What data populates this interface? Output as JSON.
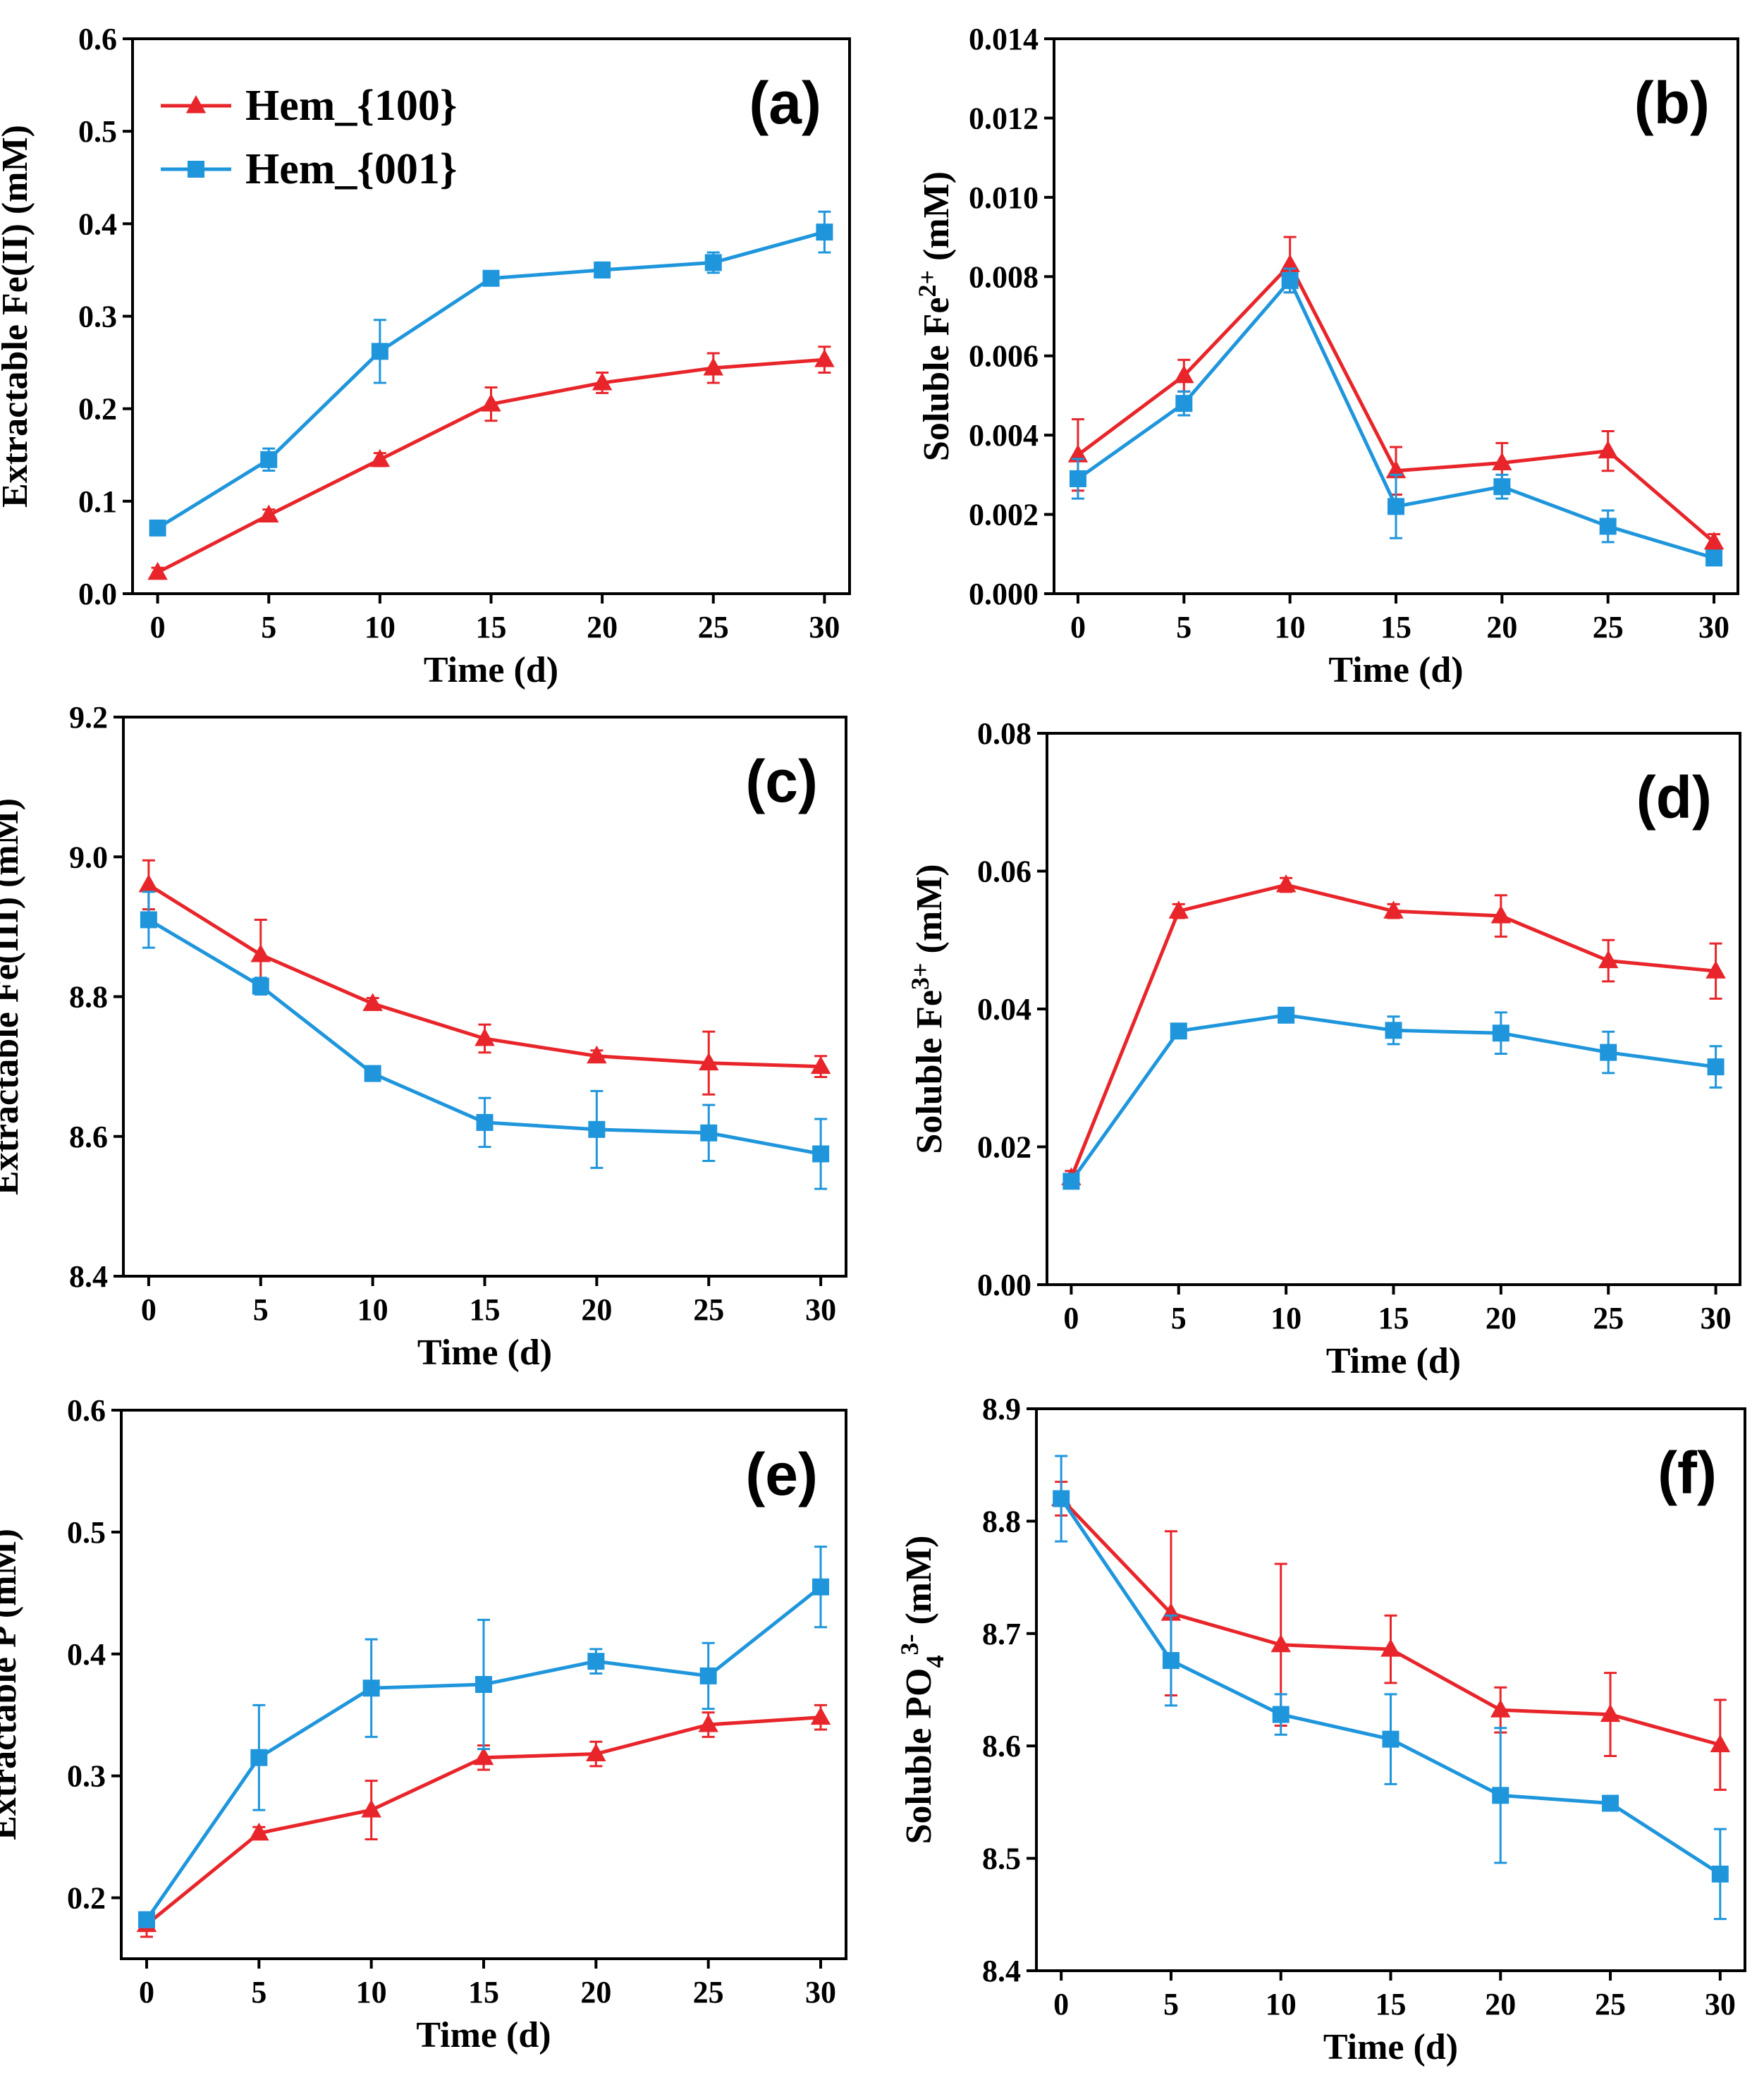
{
  "legend": {
    "series_names": [
      "Hem_{100}",
      "Hem_{001}"
    ]
  },
  "colors": {
    "red": "#e8252a",
    "blue": "#1f96dc"
  },
  "chart_data": [
    {
      "id": "a",
      "panel_label": "(a)",
      "type": "line",
      "xlabel": "Time (d)",
      "ylabel": "Extractable Fe(II) (mM)",
      "ylabel_parts": [
        {
          "t": "Extractable Fe(II) (mM)"
        }
      ],
      "x": [
        0,
        5,
        10,
        15,
        20,
        25,
        30
      ],
      "xticks": [
        "0",
        "5",
        "10",
        "15",
        "20",
        "25",
        "30"
      ],
      "ylim": [
        0,
        0.6
      ],
      "yticks": [
        "0.0",
        "0.1",
        "0.2",
        "0.3",
        "0.4",
        "0.5",
        "0.6"
      ],
      "legend": true,
      "series": [
        {
          "name": "Hem_{100}",
          "marker": "triangle",
          "color": "#e8252a",
          "values": [
            0.023,
            0.085,
            0.145,
            0.205,
            0.228,
            0.244,
            0.253
          ],
          "errors": [
            0.005,
            0.006,
            0.007,
            0.018,
            0.011,
            0.016,
            0.014
          ]
        },
        {
          "name": "Hem_{001}",
          "marker": "square",
          "color": "#1f96dc",
          "values": [
            0.071,
            0.145,
            0.262,
            0.341,
            0.35,
            0.358,
            0.391
          ],
          "errors": [
            0.005,
            0.012,
            0.034,
            0.005,
            0.008,
            0.011,
            0.022
          ]
        }
      ]
    },
    {
      "id": "b",
      "panel_label": "(b)",
      "type": "line",
      "xlabel": "Time (d)",
      "ylabel": "Soluble Fe2+ (mM)",
      "ylabel_parts": [
        {
          "t": "Soluble Fe"
        },
        {
          "t": "2+",
          "sup": true
        },
        {
          "t": " (mM)"
        }
      ],
      "x": [
        0,
        5,
        10,
        15,
        20,
        25,
        30
      ],
      "xticks": [
        "0",
        "5",
        "10",
        "15",
        "20",
        "25",
        "30"
      ],
      "ylim": [
        0,
        0.014
      ],
      "yticks": [
        "0.000",
        "0.002",
        "0.004",
        "0.006",
        "0.008",
        "0.010",
        "0.012",
        "0.014"
      ],
      "legend": false,
      "series": [
        {
          "name": "Hem_{100}",
          "marker": "triangle",
          "color": "#e8252a",
          "values": [
            0.0035,
            0.0055,
            0.0083,
            0.0031,
            0.0033,
            0.0036,
            0.0013
          ],
          "errors": [
            0.0009,
            0.0004,
            0.0007,
            0.0006,
            0.0005,
            0.0005,
            0.0002
          ]
        },
        {
          "name": "Hem_{001}",
          "marker": "square",
          "color": "#1f96dc",
          "values": [
            0.0029,
            0.0048,
            0.0079,
            0.0022,
            0.0027,
            0.0017,
            0.0009
          ],
          "errors": [
            0.0005,
            0.0003,
            0.0003,
            0.0008,
            0.0003,
            0.0004,
            0.0001
          ]
        }
      ]
    },
    {
      "id": "c",
      "panel_label": "(c)",
      "type": "line",
      "xlabel": "Time (d)",
      "ylabel": "Extractable Fe(III) (mM)",
      "ylabel_parts": [
        {
          "t": "Extractable Fe(III) (mM)"
        }
      ],
      "x": [
        0,
        5,
        10,
        15,
        20,
        25,
        30
      ],
      "xticks": [
        "0",
        "5",
        "10",
        "15",
        "20",
        "25",
        "30"
      ],
      "ylim": [
        8.4,
        9.2
      ],
      "yticks": [
        "8.4",
        "8.6",
        "8.8",
        "9.0",
        "9.2"
      ],
      "legend": false,
      "series": [
        {
          "name": "Hem_{100}",
          "marker": "triangle",
          "color": "#e8252a",
          "values": [
            8.96,
            8.86,
            8.79,
            8.74,
            8.715,
            8.705,
            8.7
          ],
          "errors": [
            0.035,
            0.05,
            0.008,
            0.02,
            0.008,
            0.045,
            0.015
          ]
        },
        {
          "name": "Hem_{001}",
          "marker": "square",
          "color": "#1f96dc",
          "values": [
            8.91,
            8.815,
            8.69,
            8.62,
            8.61,
            8.605,
            8.575
          ],
          "errors": [
            0.04,
            0.012,
            0.01,
            0.035,
            0.055,
            0.04,
            0.05
          ]
        }
      ]
    },
    {
      "id": "d",
      "panel_label": "(d)",
      "type": "line",
      "xlabel": "Time (d)",
      "ylabel": "Soluble Fe3+ (mM)",
      "ylabel_parts": [
        {
          "t": "Soluble Fe"
        },
        {
          "t": "3+",
          "sup": true
        },
        {
          "t": " (mM)"
        }
      ],
      "x": [
        0,
        5,
        10,
        15,
        20,
        25,
        30
      ],
      "xticks": [
        "0",
        "5",
        "10",
        "15",
        "20",
        "25",
        "30"
      ],
      "ylim": [
        0,
        0.08
      ],
      "yticks": [
        "0.00",
        "0.02",
        "0.04",
        "0.06",
        "0.08"
      ],
      "legend": false,
      "series": [
        {
          "name": "Hem_{100}",
          "marker": "triangle",
          "color": "#e8252a",
          "values": [
            0.0155,
            0.0542,
            0.058,
            0.0542,
            0.0535,
            0.047,
            0.0455
          ],
          "errors": [
            0.001,
            0.001,
            0.001,
            0.001,
            0.003,
            0.003,
            0.004
          ]
        },
        {
          "name": "Hem_{001}",
          "marker": "square",
          "color": "#1f96dc",
          "values": [
            0.015,
            0.0368,
            0.0391,
            0.0369,
            0.0365,
            0.0337,
            0.0316
          ],
          "errors": [
            0.001,
            0.001,
            0.001,
            0.002,
            0.003,
            0.003,
            0.003
          ]
        }
      ]
    },
    {
      "id": "e",
      "panel_label": "(e)",
      "type": "line",
      "xlabel": "Time (d)",
      "ylabel": "Extractable P (mM)",
      "ylabel_parts": [
        {
          "t": "Extractable P (mM)"
        }
      ],
      "x": [
        0,
        5,
        10,
        15,
        20,
        25,
        30
      ],
      "xticks": [
        "0",
        "5",
        "10",
        "15",
        "20",
        "25",
        "30"
      ],
      "ylim": [
        0.15,
        0.6
      ],
      "yticks": [
        "0.2",
        "0.3",
        "0.4",
        "0.5",
        "0.6"
      ],
      "ytick_values": [
        0.2,
        0.3,
        0.4,
        0.5,
        0.6
      ],
      "legend": false,
      "series": [
        {
          "name": "Hem_{100}",
          "marker": "triangle",
          "color": "#e8252a",
          "values": [
            0.178,
            0.253,
            0.272,
            0.315,
            0.318,
            0.342,
            0.348
          ],
          "errors": [
            0.01,
            0.005,
            0.024,
            0.01,
            0.01,
            0.01,
            0.01
          ]
        },
        {
          "name": "Hem_{001}",
          "marker": "square",
          "color": "#1f96dc",
          "values": [
            0.182,
            0.315,
            0.372,
            0.375,
            0.394,
            0.382,
            0.455
          ],
          "errors": [
            0.005,
            0.043,
            0.04,
            0.053,
            0.01,
            0.027,
            0.033
          ]
        }
      ]
    },
    {
      "id": "f",
      "panel_label": "(f)",
      "type": "line",
      "xlabel": "Time (d)",
      "ylabel": "Soluble PO43- (mM)",
      "ylabel_parts": [
        {
          "t": "Soluble PO"
        },
        {
          "t": "4",
          "sub": true
        },
        {
          "t": "3-",
          "sup": true
        },
        {
          "t": " (mM)"
        }
      ],
      "x": [
        0,
        5,
        10,
        15,
        20,
        25,
        30
      ],
      "xticks": [
        "0",
        "5",
        "10",
        "15",
        "20",
        "25",
        "30"
      ],
      "ylim": [
        8.4,
        8.9
      ],
      "yticks": [
        "8.4",
        "8.5",
        "8.6",
        "8.7",
        "8.8",
        "8.9"
      ],
      "legend": false,
      "series": [
        {
          "name": "Hem_{100}",
          "marker": "triangle",
          "color": "#e8252a",
          "values": [
            8.82,
            8.718,
            8.69,
            8.686,
            8.632,
            8.628,
            8.601
          ],
          "errors": [
            0.015,
            0.073,
            0.072,
            0.03,
            0.02,
            0.037,
            0.04
          ]
        },
        {
          "name": "Hem_{001}",
          "marker": "square",
          "color": "#1f96dc",
          "values": [
            8.82,
            8.676,
            8.628,
            8.606,
            8.556,
            8.549,
            8.486
          ],
          "errors": [
            0.038,
            0.04,
            0.018,
            0.04,
            0.06,
            0.002,
            0.04
          ]
        }
      ]
    }
  ]
}
